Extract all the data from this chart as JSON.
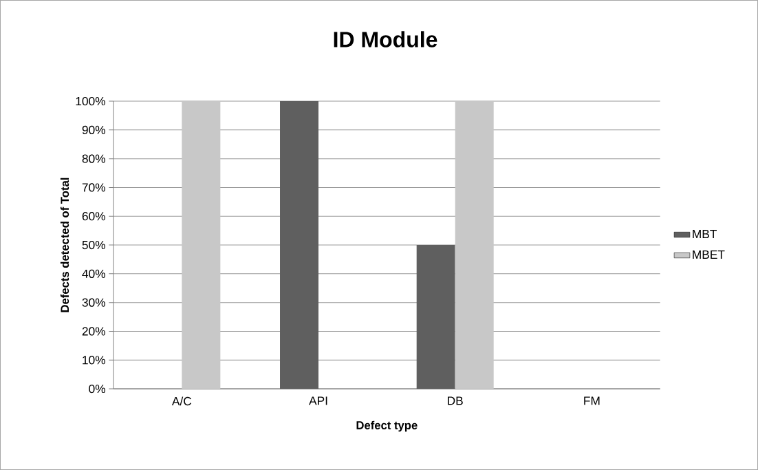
{
  "chart_data": {
    "type": "bar",
    "title": "ID Module",
    "xlabel": "Defect type",
    "ylabel": "Defects detected  of Total",
    "categories": [
      "A/C",
      "API",
      "DB",
      "FM"
    ],
    "series": [
      {
        "name": "MBT",
        "color": "#5f5f5f",
        "values": [
          0,
          100,
          50,
          0
        ]
      },
      {
        "name": "MBET",
        "color": "#c8c8c8",
        "values": [
          100,
          0,
          100,
          0
        ]
      }
    ],
    "ylim": [
      0,
      100
    ],
    "yticks": [
      {
        "value": 0,
        "label": "0%"
      },
      {
        "value": 10,
        "label": "10%"
      },
      {
        "value": 20,
        "label": "20%"
      },
      {
        "value": 30,
        "label": "30%"
      },
      {
        "value": 40,
        "label": "40%"
      },
      {
        "value": 50,
        "label": "50%"
      },
      {
        "value": 60,
        "label": "60%"
      },
      {
        "value": 70,
        "label": "70%"
      },
      {
        "value": 80,
        "label": "80%"
      },
      {
        "value": 90,
        "label": "90%"
      },
      {
        "value": 100,
        "label": "100%"
      }
    ],
    "grid": "y",
    "legend": "right"
  }
}
